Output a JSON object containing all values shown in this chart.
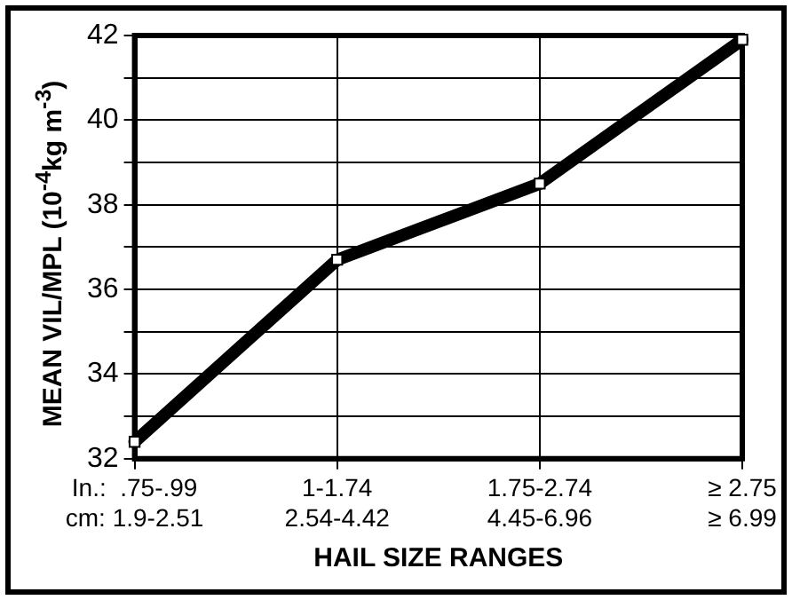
{
  "chart_data": {
    "type": "line",
    "xlabel": "HAIL SIZE RANGES",
    "ylabel": "MEAN VIL/MPL (10$^{-4}$kg m$^{-3}$)",
    "categories": [
      "In.:  .75-.99\ncm: 1.9-2.51",
      "1-1.74\n2.54-4.42",
      "1.75-2.74\n4.45-6.96",
      "≥ 2.75\n≥ 6.99"
    ],
    "series": [
      {
        "color": "#000000",
        "values": [
          32.4,
          36.7,
          38.5,
          41.9
        ]
      }
    ],
    "ylim": [
      32,
      42
    ],
    "yticks": [
      32,
      {
        "value": 33,
        "label": null
      },
      34,
      {
        "value": 35,
        "label": null
      },
      36,
      {
        "value": 37,
        "label": null
      },
      38,
      {
        "value": 39,
        "label": null
      },
      40,
      {
        "value": 41,
        "label": null
      },
      42
    ],
    "grid": true,
    "marker": "square",
    "line_style": "solid",
    "legend": false
  }
}
